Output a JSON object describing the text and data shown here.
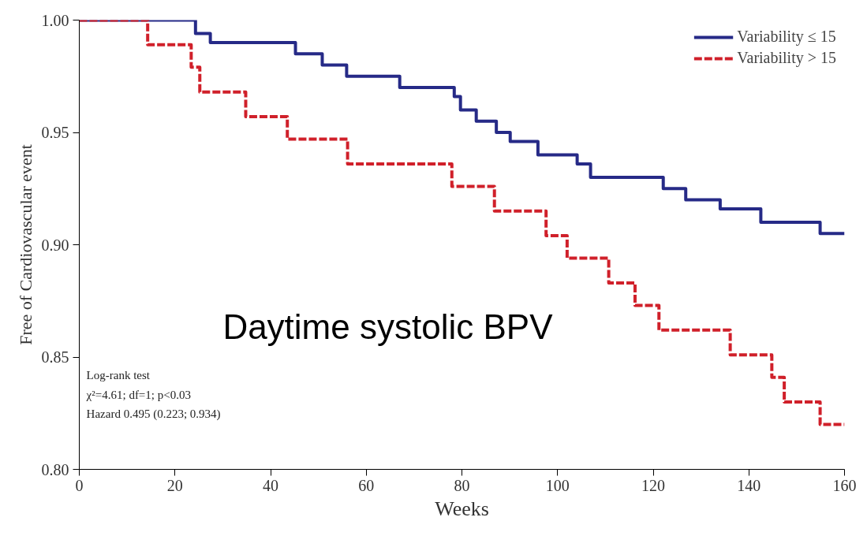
{
  "chart_data": {
    "type": "step",
    "xlabel": "Weeks",
    "ylabel": "Free of Cardiovascular event",
    "xlim": [
      0,
      160
    ],
    "ylim": [
      0.8,
      1.0
    ],
    "xticks": [
      0,
      20,
      40,
      60,
      80,
      100,
      120,
      140,
      160
    ],
    "yticks": [
      {
        "value": 0.8,
        "label": "0.80"
      },
      {
        "value": 0.85,
        "label": "0.85"
      },
      {
        "value": 0.9,
        "label": "0.90"
      },
      {
        "value": 0.95,
        "label": "0.95"
      },
      {
        "value": 1.0,
        "label": "1.00"
      }
    ],
    "grid": false,
    "legend": "top right",
    "series": [
      {
        "name": "Variability ≤ 15",
        "color": "#262a87",
        "line_style": "solid",
        "x": [
          0,
          24.3,
          27.4,
          45.2,
          50.8,
          55.9,
          67,
          78.4,
          79.7,
          83,
          87.2,
          90.1,
          95.9,
          104.1,
          106.9,
          122.1,
          126.8,
          134,
          142.5,
          154.9,
          160
        ],
        "values": [
          1.0,
          0.994,
          0.99,
          0.985,
          0.98,
          0.975,
          0.97,
          0.966,
          0.96,
          0.955,
          0.95,
          0.946,
          0.94,
          0.936,
          0.93,
          0.925,
          0.92,
          0.916,
          0.91,
          0.905,
          0.905
        ]
      },
      {
        "name": "Variability > 15",
        "color": "#d0202a",
        "line_style": "dashed",
        "x": [
          0,
          14.3,
          23.4,
          25.2,
          34.8,
          43.5,
          56.1,
          77.9,
          86.8,
          97.6,
          102,
          110.7,
          116.2,
          121.2,
          136.1,
          144.8,
          147.4,
          154.9,
          160
        ],
        "values": [
          1.0,
          0.989,
          0.979,
          0.968,
          0.957,
          0.947,
          0.936,
          0.926,
          0.915,
          0.904,
          0.894,
          0.883,
          0.873,
          0.862,
          0.851,
          0.841,
          0.83,
          0.82,
          0.82
        ]
      }
    ],
    "annotations": [
      "Daytime systolic BPV",
      "Log-rank test",
      "χ²=4.61; df=1; p<0.03",
      "Hazard 0.495 (0.223; 0.934)"
    ]
  }
}
